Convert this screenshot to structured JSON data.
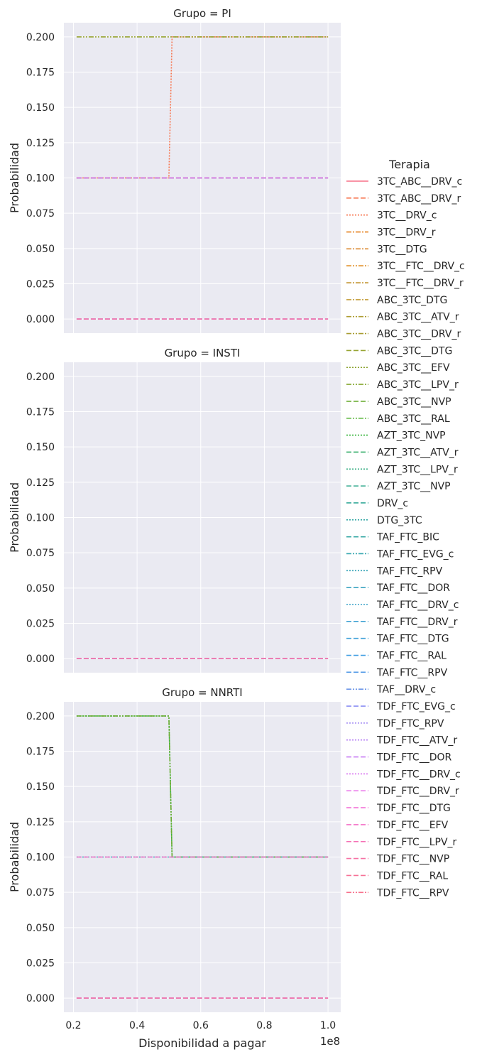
{
  "chart_data": {
    "type": "line",
    "xlabel": "Disponibilidad a pagar",
    "ylabel": "Probabilidad",
    "x_offset_label": "1e8",
    "x_ticks": [
      0.2,
      0.4,
      0.6,
      0.8,
      1.0
    ],
    "x_tick_labels": [
      "0.2",
      "0.4",
      "0.6",
      "0.8",
      "1.0"
    ],
    "y_ticks": [
      0.0,
      0.025,
      0.05,
      0.075,
      0.1,
      0.125,
      0.15,
      0.175,
      0.2
    ],
    "y_tick_labels": [
      "0.000",
      "0.025",
      "0.050",
      "0.075",
      "0.100",
      "0.125",
      "0.150",
      "0.175",
      "0.200"
    ],
    "xlim": [
      0.17,
      1.04
    ],
    "ylim": [
      -0.01,
      0.21
    ],
    "grid": true,
    "legend": {
      "title": "Terapia",
      "placement": "right",
      "entries": [
        {
          "name": "3TC_ABC__DRV_c",
          "color": "#f77189",
          "dash": "solid"
        },
        {
          "name": "3TC_ABC__DRV_r",
          "color": "#f7754f",
          "dash": "dashed"
        },
        {
          "name": "3TC__DRV_c",
          "color": "#f7754f",
          "dash": "dotted"
        },
        {
          "name": "3TC__DRV_r",
          "color": "#e5801c",
          "dash": "dashdot"
        },
        {
          "name": "3TC__DTG",
          "color": "#dc8932",
          "dash": "dashdot"
        },
        {
          "name": "3TC__FTC__DRV_c",
          "color": "#e08a1c",
          "dash": "dashdotdot"
        },
        {
          "name": "3TC__FTC__DRV_r",
          "color": "#c39532",
          "dash": "dashdot"
        },
        {
          "name": "ABC_3TC_DTG",
          "color": "#c29a32",
          "dash": "dashdot"
        },
        {
          "name": "ABC_3TC__ATV_r",
          "color": "#ae9d31",
          "dash": "dashdotdot"
        },
        {
          "name": "ABC_3TC__DRV_r",
          "color": "#a89c31",
          "dash": "dashdotdot"
        },
        {
          "name": "ABC_3TC__DTG",
          "color": "#97a431",
          "dash": "dashed"
        },
        {
          "name": "ABC_3TC__EFV",
          "color": "#8ca431",
          "dash": "dotted"
        },
        {
          "name": "ABC_3TC__LPV_r",
          "color": "#86a831",
          "dash": "dashdotdot"
        },
        {
          "name": "ABC_3TC__NVP",
          "color": "#6aac31",
          "dash": "dashed"
        },
        {
          "name": "ABC_3TC__RAL",
          "color": "#50b131",
          "dash": "dashdotdot"
        },
        {
          "name": "AZT_3TC_NVP",
          "color": "#32b237",
          "dash": "dotted"
        },
        {
          "name": "AZT_3TC__ATV_r",
          "color": "#34ae6a",
          "dash": "dashed"
        },
        {
          "name": "AZT_3TC__LPV_r",
          "color": "#35ac82",
          "dash": "dotted"
        },
        {
          "name": "AZT_3TC__NVP",
          "color": "#36ab8f",
          "dash": "dashed"
        },
        {
          "name": "DRV_c",
          "color": "#36aa9a",
          "dash": "dashed"
        },
        {
          "name": "DTG_3TC",
          "color": "#37a9a6",
          "dash": "dotted"
        },
        {
          "name": "TAF_FTC_BIC",
          "color": "#38a9a5",
          "dash": "dashed"
        },
        {
          "name": "TAF_FTC_EVG_c",
          "color": "#38a7b0",
          "dash": "dashdotdot"
        },
        {
          "name": "TAF_FTC_RPV",
          "color": "#39a6b8",
          "dash": "dotted"
        },
        {
          "name": "TAF_FTC__DOR",
          "color": "#3ba3c1",
          "dash": "dashed"
        },
        {
          "name": "TAF_FTC__DRV_c",
          "color": "#3ba3c8",
          "dash": "dotted"
        },
        {
          "name": "TAF_FTC__DRV_r",
          "color": "#3ca0d2",
          "dash": "dashed"
        },
        {
          "name": "TAF_FTC__DTG",
          "color": "#3da0d8",
          "dash": "dashed"
        },
        {
          "name": "TAF_FTC__RAL",
          "color": "#3e9ce2",
          "dash": "dashed"
        },
        {
          "name": "TAF_FTC__RPV",
          "color": "#4f99e6",
          "dash": "dashed"
        },
        {
          "name": "TAF__DRV_c",
          "color": "#6e96e8",
          "dash": "dashdotdot"
        },
        {
          "name": "TDF_FTC_EVG_c",
          "color": "#8a8ff4",
          "dash": "dashed"
        },
        {
          "name": "TDF_FTC_RPV",
          "color": "#9f86f4",
          "dash": "dotted"
        },
        {
          "name": "TDF_FTC__ATV_r",
          "color": "#b57ff4",
          "dash": "dotted"
        },
        {
          "name": "TDF_FTC__DOR",
          "color": "#c67bf4",
          "dash": "dashed"
        },
        {
          "name": "TDF_FTC__DRV_c",
          "color": "#d977f0",
          "dash": "dotted"
        },
        {
          "name": "TDF_FTC__DRV_r",
          "color": "#ea6fe8",
          "dash": "dashed"
        },
        {
          "name": "TDF_FTC__DTG",
          "color": "#f26ed5",
          "dash": "dashed"
        },
        {
          "name": "TDF_FTC__EFV",
          "color": "#f46fc6",
          "dash": "dashed"
        },
        {
          "name": "TDF_FTC__LPV_r",
          "color": "#f56fb5",
          "dash": "dashed"
        },
        {
          "name": "TDF_FTC__NVP",
          "color": "#f671a4",
          "dash": "dashed"
        },
        {
          "name": "TDF_FTC__RAL",
          "color": "#f67196",
          "dash": "dashed"
        },
        {
          "name": "TDF_FTC__RPV",
          "color": "#f7718c",
          "dash": "dashdotdot"
        }
      ]
    },
    "panels": [
      {
        "title": "Grupo = PI",
        "series": [
          {
            "name": "3TC_ABC__DRV_c",
            "color": "#f77189",
            "dash": "dashed",
            "x": [
              0.21,
              1.0
            ],
            "y": [
              0.1,
              0.1
            ]
          },
          {
            "name": "3TC__DRV_c",
            "color": "#f7754f",
            "dash": "dotted",
            "x": [
              0.21,
              0.5,
              0.51,
              1.0
            ],
            "y": [
              0.1,
              0.1,
              0.2,
              0.2
            ]
          },
          {
            "name": "ABC_3TC__LPV_r",
            "color": "#97a431",
            "dash": "dashdotdot",
            "x": [
              0.21,
              1.0
            ],
            "y": [
              0.2,
              0.2
            ]
          },
          {
            "name": "TAF_FTC__DRV_c",
            "color": "#3ba3c8",
            "dash": "dashed",
            "x": [
              0.21,
              1.0
            ],
            "y": [
              0.1,
              0.1
            ]
          },
          {
            "name": "TDF_FTC__DRV_r",
            "color": "#ea6fe8",
            "dash": "dashed",
            "x": [
              0.21,
              1.0
            ],
            "y": [
              0.1,
              0.1
            ]
          },
          {
            "name": "TDF_FTC__RAL",
            "color": "#9f86f4",
            "dash": "dashed",
            "x": [
              0.21,
              1.0
            ],
            "y": [
              0.0,
              0.0
            ]
          },
          {
            "name": "TDF_FTC__NVP",
            "color": "#f671a4",
            "dash": "dashed",
            "x": [
              0.21,
              1.0
            ],
            "y": [
              0.0,
              0.0
            ]
          }
        ]
      },
      {
        "title": "Grupo = INSTI",
        "series": [
          {
            "name": "TAF_FTC_BIC",
            "color": "#9f86f4",
            "dash": "dashed",
            "x": [
              0.21,
              1.0
            ],
            "y": [
              0.0,
              0.0
            ]
          },
          {
            "name": "TDF_FTC__RAL",
            "color": "#f671a4",
            "dash": "dashed",
            "x": [
              0.21,
              1.0
            ],
            "y": [
              0.0,
              0.0
            ]
          }
        ]
      },
      {
        "title": "Grupo = NNRTI",
        "series": [
          {
            "name": "AZT_3TC_NVP",
            "color": "#32b237",
            "dash": "dotted",
            "x": [
              0.21,
              0.5,
              0.51,
              1.0
            ],
            "y": [
              0.2,
              0.2,
              0.1,
              0.1
            ]
          },
          {
            "name": "ABC_3TC__NVP",
            "color": "#6aac31",
            "dash": "dashdotdot",
            "x": [
              0.21,
              0.5,
              0.51,
              1.0
            ],
            "y": [
              0.2,
              0.2,
              0.1,
              0.1
            ]
          },
          {
            "name": "TAF_FTC_RPV",
            "color": "#39a6b8",
            "dash": "dotted",
            "x": [
              0.21,
              1.0
            ],
            "y": [
              0.1,
              0.1
            ]
          },
          {
            "name": "TDF_FTC__EFV",
            "color": "#f46fc6",
            "dash": "dashed",
            "x": [
              0.21,
              1.0
            ],
            "y": [
              0.1,
              0.1
            ]
          },
          {
            "name": "TDF_FTC__DOR",
            "color": "#9f86f4",
            "dash": "dashed",
            "x": [
              0.21,
              1.0
            ],
            "y": [
              0.0,
              0.0
            ]
          },
          {
            "name": "TDF_FTC__RPV",
            "color": "#f671a4",
            "dash": "dashed",
            "x": [
              0.21,
              1.0
            ],
            "y": [
              0.0,
              0.0
            ]
          }
        ]
      }
    ]
  }
}
